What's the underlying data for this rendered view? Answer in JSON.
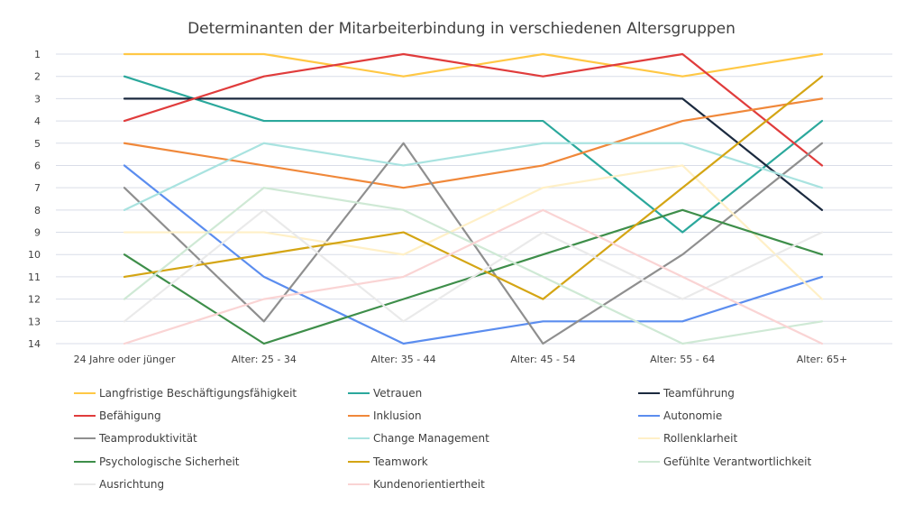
{
  "chart_data": {
    "type": "line",
    "title": "Determinanten der Mitarbeiterbindung in verschiedenen Altersgruppen",
    "categories": [
      "24 Jahre oder jünger",
      "Alter: 25 - 34",
      "Alter: 35 - 44",
      "Alter: 45 - 54",
      "Alter: 55 - 64",
      "Alter: 65+"
    ],
    "y_ticks": [
      1,
      2,
      3,
      4,
      5,
      6,
      7,
      8,
      9,
      10,
      11,
      12,
      13,
      14
    ],
    "ylim": [
      1,
      14
    ],
    "y_inverted": true,
    "grid": true,
    "legend_position": "bottom",
    "series": [
      {
        "name": "Langfristige Beschäftigungsfähigkeit",
        "color": "#FFC845",
        "values": [
          1,
          1,
          2,
          1,
          2,
          1
        ]
      },
      {
        "name": "Vetrauen",
        "color": "#2BA89C",
        "values": [
          2,
          4,
          4,
          4,
          9,
          4
        ]
      },
      {
        "name": "Teamführung",
        "color": "#1B2A3F",
        "values": [
          3,
          3,
          3,
          3,
          3,
          8
        ]
      },
      {
        "name": "Befähigung",
        "color": "#E03C3C",
        "values": [
          4,
          2,
          1,
          2,
          1,
          6
        ]
      },
      {
        "name": "Inklusion",
        "color": "#F0883A",
        "values": [
          5,
          6,
          7,
          6,
          4,
          3
        ]
      },
      {
        "name": "Autonomie",
        "color": "#5B8DEF",
        "values": [
          6,
          11,
          14,
          13,
          13,
          11
        ]
      },
      {
        "name": "Teamproduktivität",
        "color": "#8F8F8F",
        "values": [
          7,
          13,
          5,
          14,
          10,
          5
        ]
      },
      {
        "name": "Change Management",
        "color": "#A9E3E0",
        "values": [
          8,
          5,
          6,
          5,
          5,
          7
        ]
      },
      {
        "name": "Rollenklarheit",
        "color": "#FFF0C7",
        "values": [
          9,
          9,
          10,
          7,
          6,
          12
        ]
      },
      {
        "name": "Psychologische Sicherheit",
        "color": "#3E8E4A",
        "values": [
          10,
          14,
          12,
          10,
          8,
          10
        ]
      },
      {
        "name": "Teamwork",
        "color": "#D4A514",
        "values": [
          11,
          10,
          9,
          12,
          7,
          2
        ]
      },
      {
        "name": "Gefühlte Verantwortlichkeit",
        "color": "#CFE9D5",
        "values": [
          12,
          7,
          8,
          11,
          14,
          13
        ]
      },
      {
        "name": "Ausrichtung",
        "color": "#EAEAEA",
        "values": [
          13,
          8,
          13,
          9,
          12,
          9
        ]
      },
      {
        "name": "Kundenorientiertheit",
        "color": "#FAD4D4",
        "values": [
          14,
          12,
          11,
          8,
          11,
          14
        ]
      }
    ]
  }
}
